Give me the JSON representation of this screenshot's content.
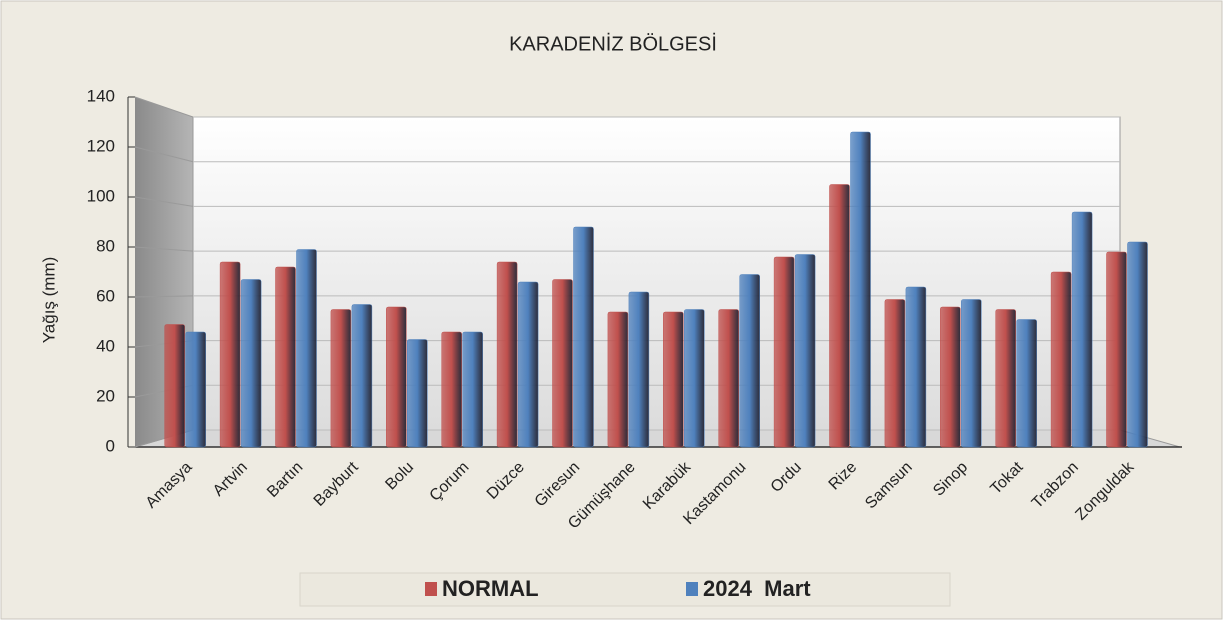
{
  "chart_data": {
    "type": "bar",
    "title": "KARADENİZ  BÖLGESİ",
    "y_label": "Yağış (mm)",
    "categories": [
      "Amasya",
      "Artvin",
      "Bartın",
      "Bayburt",
      "Bolu",
      "Çorum",
      "Düzce",
      "Giresun",
      "Gümüşhane",
      "Karabük",
      "Kastamonu",
      "Ordu",
      "Rize",
      "Samsun",
      "Sinop",
      "Tokat",
      "Trabzon",
      "Zonguldak"
    ],
    "series": [
      {
        "name": "NORMAL",
        "color": "#c0504d",
        "values": [
          49,
          74,
          72,
          55,
          56,
          46,
          74,
          67,
          54,
          54,
          55,
          76,
          105,
          59,
          56,
          55,
          70,
          78
        ]
      },
      {
        "name": "2024  Mart",
        "color": "#4f81bd",
        "values": [
          46,
          67,
          79,
          57,
          43,
          46,
          66,
          88,
          62,
          55,
          69,
          77,
          126,
          64,
          59,
          51,
          94,
          82
        ]
      }
    ],
    "ylim": [
      0,
      140
    ],
    "yticks": [
      0,
      20,
      40,
      60,
      80,
      100,
      120,
      140
    ],
    "grid": true,
    "legend": "bottom"
  }
}
